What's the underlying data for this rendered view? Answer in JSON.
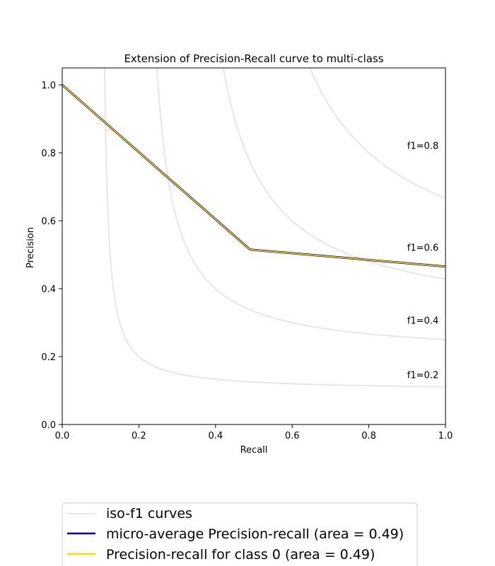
{
  "chart_data": {
    "type": "line",
    "title": "Extension of Precision-Recall curve to multi-class",
    "xlabel": "Recall",
    "ylabel": "Precision",
    "xlim": [
      0.0,
      1.0
    ],
    "ylim": [
      0.0,
      1.05
    ],
    "xticks": [
      "0.0",
      "0.2",
      "0.4",
      "0.6",
      "0.8",
      "1.0"
    ],
    "yticks": [
      "0.0",
      "0.2",
      "0.4",
      "0.6",
      "0.8",
      "1.0"
    ],
    "grid": false,
    "legend_placement": "bottom",
    "iso_f1": {
      "legend_label": "iso-f1 curves",
      "color": "#e6e6e6",
      "scores": [
        0.2,
        0.4,
        0.6,
        0.8
      ],
      "labels": [
        "f1=0.2",
        "f1=0.4",
        "f1=0.6",
        "f1=0.8"
      ]
    },
    "series": [
      {
        "name": "micro-average Precision-recall (area = 0.49)",
        "color": "#000080",
        "x": [
          0.0,
          0.49,
          1.0
        ],
        "y": [
          1.0,
          0.515,
          0.465
        ]
      },
      {
        "name": "Precision-recall for class 0 (area = 0.49)",
        "color": "#ffd700",
        "x": [
          0.0,
          0.49,
          1.0
        ],
        "y": [
          1.0,
          0.515,
          0.465
        ]
      }
    ]
  }
}
